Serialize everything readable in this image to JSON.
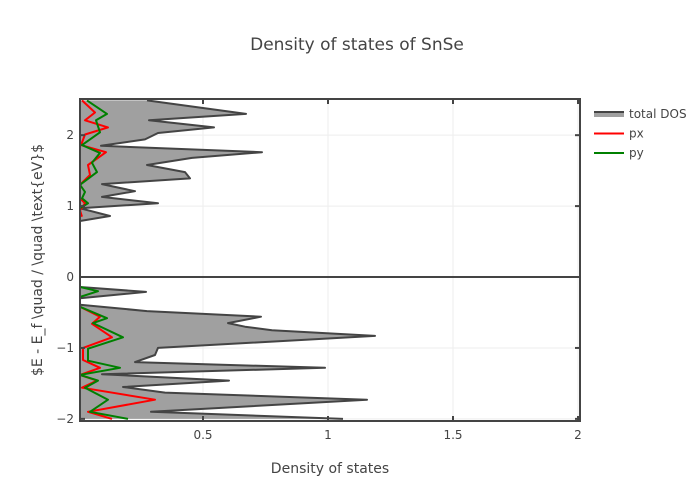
{
  "chart_data": {
    "type": "line",
    "title": "Density of states of SnSe",
    "xlabel": "Density of states",
    "ylabel": "$E - E_f \\quad / \\quad \\text{eV}$",
    "xlim": [
      0.008,
      2.008
    ],
    "ylim": [
      -2.03,
      2.51
    ],
    "xticks": [
      0.5,
      1,
      1.5,
      2
    ],
    "xtick_labels": [
      "0.5",
      "1",
      "1.5",
      "2"
    ],
    "yticks": [
      -2,
      -1,
      0,
      1,
      2
    ],
    "ytick_labels": [
      "−2",
      "−1",
      "0",
      "1",
      "2"
    ],
    "grid": true,
    "legend_position": "right",
    "series": [
      {
        "name": "total DOS",
        "color": "#444444",
        "fill": "#a0a0a0",
        "fill_mode": "tozerox",
        "segments": [
          [
            [
              0.276,
              2.49
            ],
            [
              0.672,
              2.3
            ],
            [
              0.284,
              2.21
            ],
            [
              0.544,
              2.11
            ],
            [
              0.32,
              2.03
            ],
            [
              0.268,
              1.94
            ],
            [
              0.092,
              1.85
            ],
            [
              0.736,
              1.76
            ],
            [
              0.456,
              1.68
            ],
            [
              0.276,
              1.58
            ],
            [
              0.428,
              1.48
            ],
            [
              0.448,
              1.39
            ],
            [
              0.096,
              1.31
            ],
            [
              0.228,
              1.21
            ],
            [
              0.096,
              1.13
            ],
            [
              0.32,
              1.04
            ],
            [
              0.008,
              0.97
            ],
            [
              0.128,
              0.86
            ],
            [
              0.008,
              0.79
            ]
          ],
          [
            [
              0.008,
              -0.14
            ],
            [
              0.272,
              -0.21
            ],
            [
              0.008,
              -0.3
            ],
            [
              0.008,
              -0.39
            ],
            [
              0.276,
              -0.48
            ],
            [
              0.732,
              -0.56
            ],
            [
              0.6,
              -0.65
            ],
            [
              0.668,
              -0.7
            ],
            [
              0.776,
              -0.75
            ],
            [
              1.188,
              -0.83
            ],
            [
              0.32,
              -1.0
            ],
            [
              0.308,
              -1.1
            ],
            [
              0.228,
              -1.2
            ],
            [
              0.988,
              -1.28
            ],
            [
              0.096,
              -1.37
            ],
            [
              0.604,
              -1.46
            ],
            [
              0.18,
              -1.55
            ],
            [
              0.348,
              -1.63
            ],
            [
              1.156,
              -1.73
            ],
            [
              0.292,
              -1.9
            ],
            [
              1.06,
              -2.0
            ]
          ]
        ]
      },
      {
        "name": "px",
        "color": "#ff0000",
        "segments": [
          [
            [
              0.016,
              2.49
            ],
            [
              0.068,
              2.32
            ],
            [
              0.028,
              2.21
            ],
            [
              0.12,
              2.11
            ],
            [
              0.028,
              2.01
            ],
            [
              0.012,
              1.86
            ],
            [
              0.112,
              1.76
            ],
            [
              0.04,
              1.58
            ],
            [
              0.048,
              1.44
            ],
            [
              0.008,
              1.3
            ],
            [
              0.008,
              1.11
            ],
            [
              0.028,
              1.04
            ],
            [
              0.008,
              0.94
            ],
            [
              0.016,
              0.85
            ]
          ],
          [
            [
              0.008,
              -0.18
            ],
            [
              0.008,
              -0.42
            ],
            [
              0.088,
              -0.56
            ],
            [
              0.056,
              -0.66
            ],
            [
              0.136,
              -0.85
            ],
            [
              0.02,
              -1.0
            ],
            [
              0.02,
              -1.17
            ],
            [
              0.088,
              -1.28
            ],
            [
              0.008,
              -1.38
            ],
            [
              0.076,
              -1.46
            ],
            [
              0.016,
              -1.56
            ],
            [
              0.308,
              -1.73
            ],
            [
              0.04,
              -1.9
            ],
            [
              0.136,
              -2.0
            ]
          ]
        ]
      },
      {
        "name": "py",
        "color": "#008000",
        "segments": [
          [
            [
              0.036,
              2.49
            ],
            [
              0.116,
              2.3
            ],
            [
              0.072,
              2.21
            ],
            [
              0.088,
              2.04
            ],
            [
              0.016,
              1.86
            ],
            [
              0.088,
              1.75
            ],
            [
              0.056,
              1.61
            ],
            [
              0.076,
              1.48
            ],
            [
              0.008,
              1.3
            ],
            [
              0.028,
              1.2
            ],
            [
              0.016,
              1.11
            ],
            [
              0.04,
              1.04
            ],
            [
              0.008,
              0.97
            ]
          ],
          [
            [
              0.008,
              -0.14
            ],
            [
              0.08,
              -0.2
            ],
            [
              0.008,
              -0.28
            ],
            [
              0.008,
              -0.42
            ],
            [
              0.116,
              -0.58
            ],
            [
              0.06,
              -0.65
            ],
            [
              0.18,
              -0.85
            ],
            [
              0.04,
              -1.01
            ],
            [
              0.04,
              -1.18
            ],
            [
              0.168,
              -1.28
            ],
            [
              0.008,
              -1.38
            ],
            [
              0.08,
              -1.46
            ],
            [
              0.028,
              -1.56
            ],
            [
              0.12,
              -1.73
            ],
            [
              0.048,
              -1.9
            ],
            [
              0.2,
              -2.0
            ]
          ]
        ]
      }
    ]
  }
}
